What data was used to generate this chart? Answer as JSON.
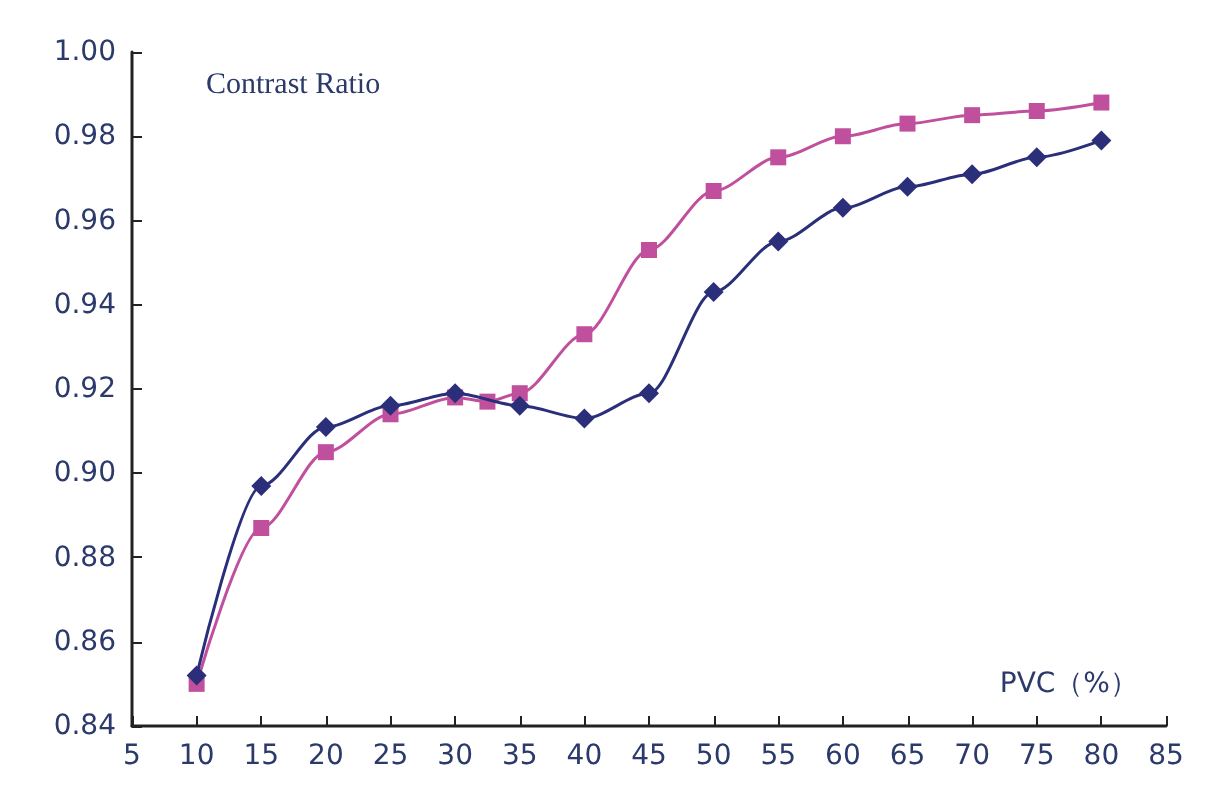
{
  "chart_data": {
    "type": "line",
    "ylabel": "Contrast Ratio",
    "xlabel": "PVC（%）",
    "series": [
      {
        "color": "#2b2f7a",
        "marker": "diamond",
        "x": [
          10,
          15,
          20,
          25,
          30,
          35,
          40,
          45,
          50,
          55,
          60,
          65,
          70,
          75,
          80
        ],
        "values": [
          0.852,
          0.897,
          0.911,
          0.916,
          0.919,
          0.916,
          0.913,
          0.919,
          0.943,
          0.955,
          0.963,
          0.968,
          0.971,
          0.975,
          0.979
        ]
      },
      {
        "color": "#c0509e",
        "marker": "square",
        "x": [
          10,
          15,
          20,
          25,
          30,
          32.5,
          35,
          40,
          45,
          50,
          55,
          60,
          65,
          70,
          75,
          80
        ],
        "values": [
          0.85,
          0.887,
          0.905,
          0.914,
          0.918,
          0.917,
          0.919,
          0.933,
          0.953,
          0.967,
          0.975,
          0.98,
          0.983,
          0.985,
          0.986,
          0.988
        ]
      }
    ],
    "xlim": [
      5,
      85
    ],
    "xticks": [
      5,
      10,
      15,
      20,
      25,
      30,
      35,
      40,
      45,
      50,
      55,
      60,
      65,
      70,
      75,
      80,
      85
    ],
    "ylim": [
      0.84,
      1.0
    ],
    "yticks": [
      {
        "value": 0.84,
        "label": "0.84"
      },
      {
        "value": 0.86,
        "label": "0.86"
      },
      {
        "value": 0.88,
        "label": "0.88"
      },
      {
        "value": 0.9,
        "label": "0.90"
      },
      {
        "value": 0.92,
        "label": "0.92"
      },
      {
        "value": 0.94,
        "label": "0.94"
      },
      {
        "value": 0.96,
        "label": "0.96"
      },
      {
        "value": 0.98,
        "label": "0.98"
      },
      {
        "value": 1.0,
        "label": "1.00"
      }
    ]
  }
}
